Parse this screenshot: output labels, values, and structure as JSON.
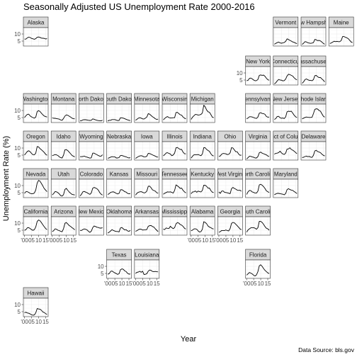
{
  "chart_data": {
    "type": "line",
    "title": "Seasonally Adjusted US Unemployment Rate 2000-2016",
    "xlabel": "Year",
    "ylabel": "Unemployment Rate (%)",
    "caption": "Data Source: bls.gov",
    "x_tick_labels": [
      "'00",
      "05",
      "10",
      "15"
    ],
    "x_tick_values": [
      2000,
      2005,
      2010,
      2015
    ],
    "y_tick_labels": [
      "5",
      "10"
    ],
    "y_tick_values": [
      5,
      10
    ],
    "xlim": [
      1999.2,
      2016.8
    ],
    "ylim": [
      1.5,
      14.5
    ],
    "line_color": "#000000",
    "panel_border_color": "#333333",
    "strip_fill": "#d9d9d9",
    "grid_color": "#ebebeb",
    "x": [
      2000,
      2001,
      2002,
      2003,
      2004,
      2005,
      2006,
      2007,
      2008,
      2009,
      2010,
      2011,
      2012,
      2013,
      2014,
      2015,
      2016
    ],
    "panels": [
      {
        "label": "Alaska",
        "values": [
          6.4,
          6.4,
          7.3,
          7.8,
          7.5,
          6.9,
          6.6,
          6.3,
          6.7,
          7.7,
          7.9,
          7.6,
          7.1,
          7.0,
          6.9,
          6.5,
          6.7
        ]
      },
      {
        "label": "Vermont",
        "values": [
          2.8,
          3.4,
          3.9,
          4.3,
          3.7,
          3.5,
          3.7,
          4.0,
          4.8,
          6.6,
          6.1,
          5.5,
          5.0,
          4.4,
          4.1,
          3.6,
          3.2
        ]
      },
      {
        "label": "New Hampshire",
        "values": [
          2.7,
          3.5,
          4.6,
          4.4,
          3.8,
          3.6,
          3.4,
          3.6,
          3.9,
          6.2,
          5.9,
          5.3,
          5.5,
          5.1,
          4.3,
          3.4,
          2.8
        ]
      },
      {
        "label": "Maine",
        "values": [
          3.3,
          3.7,
          4.3,
          4.9,
          4.6,
          4.8,
          4.6,
          4.6,
          5.4,
          8.2,
          8.2,
          7.7,
          7.3,
          6.7,
          5.6,
          4.4,
          3.9
        ]
      },
      {
        "label": "New York",
        "values": [
          4.5,
          4.8,
          6.2,
          6.4,
          5.8,
          5.0,
          4.5,
          4.6,
          5.4,
          8.3,
          8.6,
          8.3,
          8.5,
          7.7,
          6.3,
          5.3,
          4.8
        ]
      },
      {
        "label": "Connecticut",
        "values": [
          2.3,
          3.1,
          4.4,
          5.4,
          5.0,
          4.9,
          4.4,
          4.6,
          5.7,
          7.9,
          9.1,
          8.8,
          8.3,
          7.8,
          6.6,
          5.7,
          5.1
        ]
      },
      {
        "label": "Massachusetts",
        "values": [
          2.7,
          3.7,
          5.3,
          5.8,
          5.2,
          4.8,
          4.8,
          4.5,
          5.3,
          8.1,
          8.3,
          7.3,
          6.7,
          6.8,
          5.8,
          4.9,
          3.7
        ]
      },
      {
        "label": "Washington",
        "values": [
          5.0,
          6.3,
          7.3,
          7.4,
          6.2,
          5.5,
          5.0,
          4.6,
          5.3,
          9.3,
          9.9,
          9.3,
          8.1,
          7.0,
          6.1,
          5.7,
          5.4
        ]
      },
      {
        "label": "Montana",
        "values": [
          4.8,
          4.5,
          4.5,
          4.3,
          4.1,
          3.9,
          3.3,
          3.1,
          4.4,
          6.1,
          6.9,
          6.6,
          6.0,
          5.4,
          4.6,
          4.2,
          4.1
        ]
      },
      {
        "label": "North Dakota",
        "values": [
          2.8,
          2.8,
          3.4,
          3.5,
          3.5,
          3.3,
          3.1,
          3.0,
          3.1,
          4.1,
          3.8,
          3.4,
          3.1,
          2.9,
          2.8,
          2.7,
          3.2
        ]
      },
      {
        "label": "South Dakota",
        "values": [
          2.6,
          3.1,
          3.1,
          3.6,
          3.6,
          3.6,
          3.2,
          2.9,
          3.0,
          4.9,
          4.8,
          4.6,
          4.2,
          3.8,
          3.4,
          3.1,
          2.9
        ]
      },
      {
        "label": "Minnesota",
        "values": [
          3.1,
          3.8,
          4.6,
          4.9,
          4.6,
          4.1,
          4.0,
          4.6,
          5.4,
          7.8,
          7.4,
          6.5,
          5.6,
          5.0,
          4.2,
          3.7,
          3.9
        ]
      },
      {
        "label": "Wisconsin",
        "values": [
          3.4,
          4.4,
          5.3,
          5.7,
          5.0,
          4.7,
          4.7,
          4.9,
          4.9,
          8.6,
          8.7,
          7.8,
          7.0,
          6.7,
          5.4,
          4.6,
          4.1
        ]
      },
      {
        "label": "Michigan",
        "values": [
          3.7,
          5.3,
          6.3,
          7.2,
          7.1,
          6.8,
          6.9,
          7.2,
          8.3,
          13.7,
          12.6,
          10.4,
          9.1,
          8.8,
          7.2,
          5.4,
          4.9
        ]
      },
      {
        "label": "Pennsylvania",
        "values": [
          4.1,
          4.7,
          5.6,
          5.6,
          5.4,
          5.0,
          4.6,
          4.4,
          5.4,
          8.1,
          8.5,
          7.9,
          7.8,
          7.3,
          5.8,
          5.3,
          5.4
        ]
      },
      {
        "label": "New Jersey",
        "values": [
          3.7,
          4.3,
          5.8,
          5.9,
          4.9,
          4.5,
          4.7,
          4.3,
          5.5,
          9.1,
          9.5,
          9.3,
          9.5,
          8.2,
          6.7,
          5.6,
          5.0
        ]
      },
      {
        "label": "Rhode Island",
        "values": [
          4.1,
          4.6,
          5.1,
          5.4,
          5.2,
          5.1,
          5.1,
          5.2,
          7.8,
          10.8,
          11.2,
          11.0,
          10.0,
          9.5,
          7.7,
          6.0,
          5.3
        ]
      },
      {
        "label": "Oregon",
        "values": [
          5.1,
          6.3,
          7.6,
          8.1,
          7.4,
          6.2,
          5.3,
          5.2,
          6.4,
          11.1,
          10.8,
          9.6,
          8.8,
          7.9,
          6.9,
          5.6,
          4.9
        ]
      },
      {
        "label": "Idaho",
        "values": [
          4.6,
          5.0,
          5.4,
          5.2,
          4.7,
          3.8,
          3.2,
          3.0,
          5.0,
          8.8,
          8.9,
          8.2,
          7.1,
          6.0,
          4.8,
          4.2,
          3.8
        ]
      },
      {
        "label": "Wyoming",
        "values": [
          3.9,
          3.9,
          4.0,
          4.3,
          3.8,
          3.6,
          3.2,
          2.9,
          3.1,
          6.4,
          6.4,
          5.8,
          5.3,
          4.7,
          4.3,
          4.3,
          5.3
        ]
      },
      {
        "label": "Nebraska",
        "values": [
          2.8,
          3.1,
          3.6,
          3.9,
          3.8,
          3.8,
          3.0,
          3.0,
          3.3,
          4.7,
          4.7,
          4.4,
          4.0,
          3.8,
          3.3,
          3.0,
          3.2
        ]
      },
      {
        "label": "Iowa",
        "values": [
          2.7,
          3.4,
          4.0,
          4.4,
          4.6,
          4.3,
          3.7,
          3.8,
          4.2,
          6.3,
          6.1,
          5.7,
          5.2,
          4.7,
          4.3,
          3.7,
          3.6
        ]
      },
      {
        "label": "Illinois",
        "values": [
          4.5,
          5.4,
          6.5,
          6.7,
          6.2,
          5.8,
          4.6,
          5.1,
          6.4,
          10.2,
          10.4,
          9.6,
          9.0,
          9.0,
          7.1,
          6.0,
          5.9
        ]
      },
      {
        "label": "Indiana",
        "values": [
          2.9,
          4.2,
          5.2,
          5.3,
          5.3,
          5.4,
          5.0,
          4.6,
          5.8,
          10.3,
          10.2,
          9.0,
          8.3,
          7.7,
          6.0,
          4.8,
          4.4
        ]
      },
      {
        "label": "Ohio",
        "values": [
          4.0,
          4.4,
          5.7,
          6.2,
          6.1,
          5.9,
          5.4,
          5.6,
          6.6,
          10.3,
          10.0,
          8.7,
          7.4,
          7.4,
          5.8,
          4.9,
          5.0
        ]
      },
      {
        "label": "Virginia",
        "values": [
          2.3,
          3.2,
          4.2,
          4.1,
          3.7,
          3.5,
          3.0,
          3.0,
          4.0,
          6.7,
          7.1,
          6.4,
          6.0,
          5.6,
          5.2,
          4.4,
          4.0
        ]
      },
      {
        "label": "District of Columbia",
        "values": [
          5.7,
          6.3,
          6.4,
          6.8,
          7.8,
          6.6,
          5.8,
          5.5,
          6.4,
          9.3,
          9.4,
          10.2,
          9.0,
          8.5,
          7.8,
          6.9,
          6.0
        ]
      },
      {
        "label": "Delaware",
        "values": [
          3.3,
          3.5,
          4.0,
          4.3,
          3.9,
          4.1,
          3.6,
          3.4,
          4.9,
          8.0,
          8.4,
          7.5,
          7.2,
          6.7,
          5.7,
          4.9,
          4.4
        ]
      },
      {
        "label": "Nevada",
        "values": [
          4.5,
          5.7,
          5.7,
          5.2,
          4.5,
          4.2,
          4.2,
          4.8,
          6.9,
          11.8,
          13.7,
          13.1,
          11.5,
          9.8,
          7.9,
          6.8,
          5.7
        ]
      },
      {
        "label": "Utah",
        "values": [
          3.4,
          4.4,
          5.8,
          5.6,
          5.0,
          4.1,
          2.9,
          2.6,
          3.6,
          7.3,
          8.0,
          6.7,
          5.5,
          4.6,
          3.8,
          3.6,
          3.4
        ]
      },
      {
        "label": "Colorado",
        "values": [
          2.7,
          3.8,
          5.6,
          5.9,
          5.4,
          5.0,
          4.3,
          3.8,
          4.8,
          8.1,
          8.7,
          8.3,
          7.8,
          6.8,
          5.0,
          3.9,
          3.3
        ]
      },
      {
        "label": "Kansas",
        "values": [
          3.7,
          4.3,
          5.2,
          5.5,
          5.6,
          5.1,
          4.5,
          4.1,
          4.5,
          7.0,
          7.1,
          6.5,
          5.7,
          5.4,
          4.5,
          4.2,
          4.2
        ]
      },
      {
        "label": "Missouri",
        "values": [
          3.3,
          4.6,
          5.3,
          5.6,
          5.7,
          5.3,
          4.8,
          5.1,
          6.1,
          9.5,
          9.6,
          8.5,
          7.0,
          6.5,
          6.1,
          5.0,
          4.6
        ]
      },
      {
        "label": "Tennessee",
        "values": [
          3.9,
          4.6,
          5.1,
          5.6,
          5.4,
          5.6,
          5.2,
          4.7,
          6.6,
          10.5,
          9.8,
          9.0,
          8.0,
          8.2,
          6.6,
          5.6,
          4.8
        ]
      },
      {
        "label": "Kentucky",
        "values": [
          4.2,
          5.5,
          5.6,
          6.2,
          5.3,
          6.1,
          5.8,
          5.5,
          6.6,
          10.3,
          10.2,
          9.5,
          8.2,
          8.3,
          6.5,
          5.4,
          5.0
        ]
      },
      {
        "label": "West Virginia",
        "values": [
          5.5,
          4.5,
          6.1,
          6.2,
          5.3,
          5.1,
          4.9,
          4.6,
          4.3,
          7.9,
          8.7,
          8.0,
          7.5,
          6.8,
          6.6,
          6.7,
          6.0
        ]
      },
      {
        "label": "North Carolina",
        "values": [
          3.7,
          5.6,
          6.6,
          6.4,
          5.5,
          5.2,
          4.7,
          4.7,
          6.1,
          10.5,
          10.9,
          10.3,
          9.3,
          8.0,
          6.3,
          5.7,
          5.1
        ]
      },
      {
        "label": "Maryland",
        "values": [
          3.6,
          4.1,
          4.5,
          4.5,
          4.3,
          4.1,
          3.9,
          3.5,
          4.4,
          7.2,
          7.8,
          7.2,
          6.8,
          6.6,
          5.8,
          5.2,
          4.3
        ]
      },
      {
        "label": "California",
        "values": [
          4.9,
          5.4,
          6.7,
          6.8,
          6.2,
          5.4,
          4.9,
          5.4,
          7.3,
          11.2,
          12.2,
          11.7,
          10.4,
          8.9,
          7.5,
          6.2,
          5.4
        ]
      },
      {
        "label": "Arizona",
        "values": [
          4.0,
          4.7,
          6.0,
          5.7,
          5.0,
          4.7,
          4.2,
          3.9,
          6.1,
          9.9,
          10.4,
          9.4,
          8.3,
          7.7,
          6.8,
          6.1,
          5.3
        ]
      },
      {
        "label": "New Mexico",
        "values": [
          4.9,
          4.8,
          5.5,
          5.9,
          5.7,
          5.2,
          4.2,
          3.5,
          4.3,
          6.8,
          8.0,
          7.6,
          7.1,
          6.9,
          6.5,
          6.5,
          6.7
        ]
      },
      {
        "label": "Oklahoma",
        "values": [
          3.0,
          3.6,
          4.5,
          5.4,
          4.8,
          4.4,
          4.1,
          4.1,
          3.8,
          6.6,
          6.9,
          6.0,
          5.2,
          5.4,
          4.5,
          4.2,
          4.9
        ]
      },
      {
        "label": "Arkansas",
        "values": [
          4.2,
          4.7,
          5.4,
          5.8,
          5.7,
          5.1,
          5.2,
          5.3,
          5.5,
          7.8,
          8.2,
          8.3,
          7.6,
          7.2,
          6.0,
          5.0,
          4.0
        ]
      },
      {
        "label": "Mississippi",
        "values": [
          5.7,
          5.5,
          6.6,
          6.3,
          6.2,
          7.8,
          6.8,
          6.1,
          6.8,
          9.5,
          10.4,
          10.0,
          9.0,
          8.6,
          7.7,
          6.4,
          5.8
        ]
      },
      {
        "label": "Alabama",
        "values": [
          4.6,
          5.1,
          5.9,
          6.0,
          5.7,
          4.5,
          3.7,
          4.0,
          5.7,
          11.0,
          10.5,
          9.6,
          8.0,
          7.2,
          6.8,
          6.1,
          5.9
        ]
      },
      {
        "label": "Georgia",
        "values": [
          3.5,
          4.0,
          4.8,
          4.8,
          4.7,
          5.2,
          4.7,
          4.5,
          6.2,
          9.9,
          10.5,
          10.2,
          9.2,
          8.2,
          7.1,
          5.9,
          5.4
        ]
      },
      {
        "label": "South Carolina",
        "values": [
          3.6,
          5.2,
          6.0,
          6.7,
          6.8,
          6.8,
          6.4,
          5.7,
          6.8,
          11.3,
          11.2,
          10.5,
          9.2,
          7.6,
          6.4,
          6.0,
          5.0
        ]
      },
      {
        "label": "Texas",
        "values": [
          4.4,
          4.9,
          6.4,
          6.7,
          6.0,
          5.4,
          4.9,
          4.3,
          4.8,
          7.6,
          8.2,
          7.9,
          6.8,
          6.3,
          5.1,
          4.5,
          4.6
        ]
      },
      {
        "label": "Louisiana",
        "values": [
          5.0,
          5.8,
          6.0,
          6.5,
          5.8,
          6.6,
          4.2,
          4.4,
          4.8,
          6.6,
          7.4,
          7.1,
          6.4,
          6.2,
          6.4,
          6.2,
          6.1
        ]
      },
      {
        "label": "Florida",
        "values": [
          3.8,
          4.7,
          5.7,
          5.2,
          4.6,
          3.7,
          3.2,
          4.0,
          6.3,
          10.4,
          11.1,
          10.0,
          8.5,
          7.2,
          6.3,
          5.4,
          4.9
        ]
      },
      {
        "label": "Hawaii",
        "values": [
          4.3,
          4.6,
          4.1,
          3.9,
          3.4,
          2.8,
          2.5,
          2.7,
          4.2,
          7.2,
          6.9,
          6.7,
          6.0,
          4.8,
          4.4,
          3.6,
          3.0
        ]
      }
    ]
  }
}
